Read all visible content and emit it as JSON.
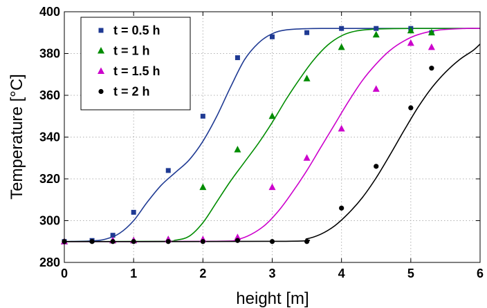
{
  "chart_data": {
    "type": "line",
    "xlabel": "height [m]",
    "ylabel": "Temperature [°C]",
    "xlim": [
      0,
      6
    ],
    "ylim": [
      280,
      400
    ],
    "xticks": [
      "0",
      "1",
      "2",
      "3",
      "4",
      "5",
      "6"
    ],
    "yticks": [
      "280",
      "300",
      "320",
      "340",
      "360",
      "380",
      "400"
    ],
    "grid": true,
    "legend_position": "top-left",
    "series": [
      {
        "name": "t = 0.5 h",
        "color": "#1f3a93",
        "marker": "square",
        "points": [
          [
            0,
            290
          ],
          [
            0.4,
            290.5
          ],
          [
            0.7,
            293
          ],
          [
            1.0,
            304
          ],
          [
            1.5,
            324
          ],
          [
            2.0,
            350
          ],
          [
            2.5,
            378
          ],
          [
            3.0,
            388
          ],
          [
            3.5,
            390
          ],
          [
            4.0,
            392
          ],
          [
            4.5,
            392
          ],
          [
            5.0,
            392
          ],
          [
            5.3,
            390
          ]
        ],
        "curve": [
          [
            0,
            290
          ],
          [
            0.4,
            290.3
          ],
          [
            0.6,
            291.2
          ],
          [
            0.8,
            294
          ],
          [
            1.0,
            300
          ],
          [
            1.2,
            309
          ],
          [
            1.4,
            317
          ],
          [
            1.6,
            323
          ],
          [
            1.8,
            329
          ],
          [
            2.0,
            338
          ],
          [
            2.2,
            350
          ],
          [
            2.4,
            364
          ],
          [
            2.6,
            377
          ],
          [
            2.8,
            385
          ],
          [
            3.0,
            389.5
          ],
          [
            3.2,
            391.3
          ],
          [
            3.5,
            391.9
          ],
          [
            4.0,
            392
          ],
          [
            6.0,
            392
          ]
        ]
      },
      {
        "name": "t = 1 h",
        "color": "#008c00",
        "marker": "triangle",
        "points": [
          [
            0,
            290
          ],
          [
            0.7,
            290.5
          ],
          [
            1.0,
            290.5
          ],
          [
            1.5,
            291
          ],
          [
            2.0,
            316
          ],
          [
            2.5,
            334
          ],
          [
            3.0,
            350
          ],
          [
            3.5,
            368
          ],
          [
            4.0,
            383
          ],
          [
            4.5,
            389
          ],
          [
            5.0,
            391
          ],
          [
            5.3,
            390
          ]
        ],
        "curve": [
          [
            0,
            290
          ],
          [
            1.4,
            290.1
          ],
          [
            1.6,
            290.6
          ],
          [
            1.8,
            292.5
          ],
          [
            2.0,
            299
          ],
          [
            2.2,
            309
          ],
          [
            2.4,
            319
          ],
          [
            2.6,
            328
          ],
          [
            2.8,
            337
          ],
          [
            3.0,
            347
          ],
          [
            3.2,
            358
          ],
          [
            3.4,
            368
          ],
          [
            3.6,
            377
          ],
          [
            3.8,
            384
          ],
          [
            4.0,
            388.5
          ],
          [
            4.2,
            390.7
          ],
          [
            4.5,
            391.7
          ],
          [
            5.0,
            392
          ],
          [
            6.0,
            392
          ]
        ]
      },
      {
        "name": "t = 1.5 h",
        "color": "#cc00cc",
        "marker": "triangle",
        "points": [
          [
            0,
            290
          ],
          [
            0.7,
            290.5
          ],
          [
            1.0,
            290.5
          ],
          [
            1.5,
            291
          ],
          [
            2.0,
            291
          ],
          [
            2.5,
            292
          ],
          [
            3.0,
            316
          ],
          [
            3.5,
            330
          ],
          [
            4.0,
            344
          ],
          [
            4.5,
            363
          ],
          [
            5.0,
            385
          ],
          [
            5.3,
            383
          ]
        ],
        "curve": [
          [
            0,
            290
          ],
          [
            2.2,
            290.1
          ],
          [
            2.5,
            291
          ],
          [
            2.7,
            293.5
          ],
          [
            2.9,
            298
          ],
          [
            3.1,
            305
          ],
          [
            3.3,
            314
          ],
          [
            3.5,
            324
          ],
          [
            3.7,
            335
          ],
          [
            3.9,
            346
          ],
          [
            4.1,
            357
          ],
          [
            4.3,
            367
          ],
          [
            4.5,
            375
          ],
          [
            4.7,
            381.5
          ],
          [
            4.9,
            386
          ],
          [
            5.1,
            389
          ],
          [
            5.4,
            391.2
          ],
          [
            5.8,
            392
          ],
          [
            6.0,
            392
          ]
        ]
      },
      {
        "name": "t = 2 h",
        "color": "#000000",
        "marker": "circle",
        "points": [
          [
            0,
            290
          ],
          [
            0.4,
            290
          ],
          [
            0.7,
            290
          ],
          [
            1.0,
            290
          ],
          [
            1.5,
            290
          ],
          [
            2.0,
            290
          ],
          [
            2.5,
            290.5
          ],
          [
            3.0,
            290
          ],
          [
            3.5,
            290
          ],
          [
            4.0,
            306
          ],
          [
            4.5,
            326
          ],
          [
            5.0,
            354
          ],
          [
            5.3,
            373
          ]
        ],
        "curve": [
          [
            0,
            290
          ],
          [
            3.2,
            290.1
          ],
          [
            3.5,
            291.3
          ],
          [
            3.7,
            293.5
          ],
          [
            3.9,
            297.5
          ],
          [
            4.1,
            303.5
          ],
          [
            4.3,
            311
          ],
          [
            4.5,
            320.5
          ],
          [
            4.7,
            331.5
          ],
          [
            4.9,
            343
          ],
          [
            5.1,
            354
          ],
          [
            5.3,
            363.5
          ],
          [
            5.5,
            371
          ],
          [
            5.7,
            377
          ],
          [
            5.9,
            381.5
          ],
          [
            6.0,
            384.5
          ]
        ]
      }
    ]
  }
}
